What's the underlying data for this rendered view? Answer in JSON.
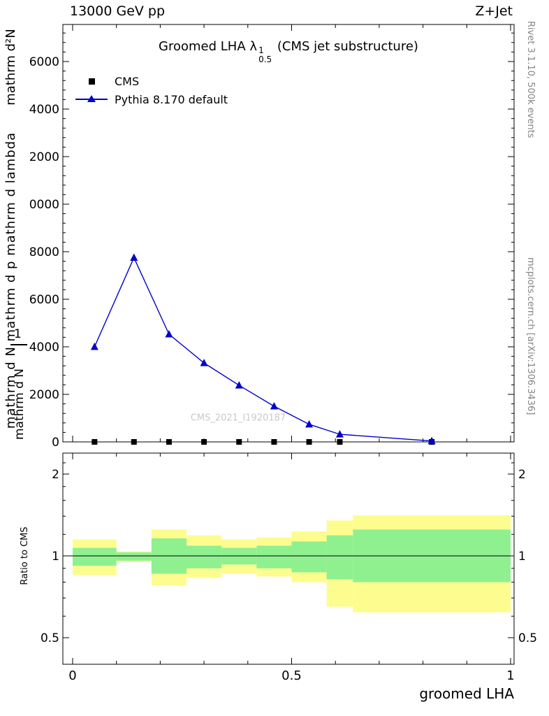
{
  "header": {
    "left": "13000 GeV pp",
    "right": "Z+Jet"
  },
  "plot_title": {
    "text": "Groomed LHA",
    "symbol": "λ",
    "superscript": "1",
    "subscript": "0.5",
    "suffix": "(CMS jet substructure)"
  },
  "legend": {
    "items": [
      {
        "label": "CMS",
        "marker": "filled-square",
        "color": "#000000"
      },
      {
        "label": "Pythia 8.170 default",
        "marker": "line-with-triangle",
        "color": "#0000cc"
      }
    ]
  },
  "watermark": "CMS_2021_I1920187",
  "side_notes": {
    "rivet": "Rivet 3.1.10,  500k events",
    "mcplots": "mcplots.cern.ch [arXiv:1306.3436]"
  },
  "axis_labels": {
    "x": "groomed LHA",
    "ratio_y": "Ratio to CMS",
    "y_garbled_numerator": "mathrm d²N",
    "y_garbled_denominator": "mathrm d N mathrm d p mathrm d lambda",
    "y_garbled_one": "1",
    "y_garbled_nj": "mathrm d N"
  },
  "chart_data": {
    "type": "line",
    "title": "Groomed LHA λ^1_0.5 (CMS jet substructure)",
    "xlabel": "groomed LHA",
    "ylabel": "1/N d²N/(d p d λ)  (rendered garbled as plain 'mathrm' text)",
    "xlim": [
      -0.022,
      1.008
    ],
    "xticks": [
      {
        "value": 0,
        "label": "0"
      },
      {
        "value": 0.5,
        "label": "0.5"
      },
      {
        "value": 1,
        "label": "1"
      }
    ],
    "x_minor_step": 0.1,
    "main_panel": {
      "ylim": [
        0,
        17600
      ],
      "grid": false,
      "yticks": [
        {
          "value": 0,
          "label": "0"
        },
        {
          "value": 2000,
          "label": "2000"
        },
        {
          "value": 4000,
          "label": "4000"
        },
        {
          "value": 6000,
          "label": "6000"
        },
        {
          "value": 8000,
          "label": "8000"
        },
        {
          "value": 10000,
          "label": "0000"
        },
        {
          "value": 12000,
          "label": "2000"
        },
        {
          "value": 14000,
          "label": "4000"
        },
        {
          "value": 16000,
          "label": "6000"
        }
      ],
      "y_minor_step": 400,
      "series": [
        {
          "name": "CMS",
          "style": "scatter",
          "marker": "square",
          "color": "#000000",
          "x": [
            0.05,
            0.14,
            0.22,
            0.3,
            0.38,
            0.46,
            0.54,
            0.61,
            0.82
          ],
          "y": [
            0,
            0,
            0,
            0,
            0,
            0,
            0,
            0,
            0
          ]
        },
        {
          "name": "Pythia 8.170 default",
          "style": "line+markers",
          "marker": "triangle-up",
          "color": "#0000cc",
          "x": [
            0.05,
            0.14,
            0.22,
            0.3,
            0.38,
            0.46,
            0.54,
            0.61,
            0.82
          ],
          "y": [
            4000,
            7750,
            4530,
            3320,
            2380,
            1500,
            740,
            320,
            40
          ]
        }
      ]
    },
    "ratio_panel": {
      "ylabel": "Ratio to CMS",
      "yscale": "log",
      "ylim": [
        0.4,
        2.4
      ],
      "yticks": [
        {
          "value": 0.5,
          "label": "0.5"
        },
        {
          "value": 1,
          "label": "1"
        },
        {
          "value": 2,
          "label": "2"
        }
      ],
      "y_minor": [
        0.6,
        0.7,
        0.8,
        0.9,
        1.2,
        1.4,
        1.6,
        1.8,
        2.2
      ],
      "baseline": 1,
      "bin_edges": [
        0,
        0.1,
        0.18,
        0.26,
        0.34,
        0.42,
        0.5,
        0.58,
        0.64,
        1.0
      ],
      "bands": [
        {
          "name": "total-uncertainty",
          "color": "#fdfd8f",
          "lo": [
            0.85,
            0.95,
            0.78,
            0.83,
            0.86,
            0.84,
            0.8,
            0.65,
            0.62
          ],
          "hi": [
            1.15,
            1.04,
            1.25,
            1.19,
            1.15,
            1.17,
            1.23,
            1.35,
            1.41
          ]
        },
        {
          "name": "stat-uncertainty",
          "color": "#8ff08f",
          "lo": [
            0.92,
            0.96,
            0.86,
            0.9,
            0.93,
            0.9,
            0.87,
            0.82,
            0.8
          ],
          "hi": [
            1.07,
            1.03,
            1.16,
            1.09,
            1.07,
            1.09,
            1.13,
            1.19,
            1.25
          ]
        }
      ]
    }
  }
}
